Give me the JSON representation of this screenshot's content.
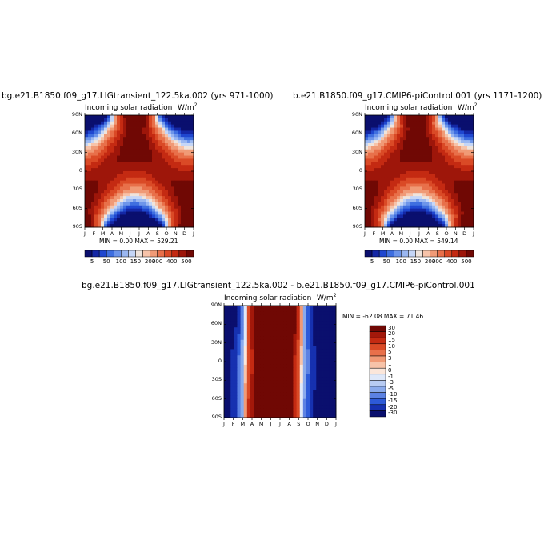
{
  "chart_data": [
    {
      "type": "heatmap",
      "title": "bg.e21.B1850.f09_g17.LIGtransient_122.5ka.002 (yrs 971-1000)",
      "variable_label": "Incoming solar radiation",
      "units_base": "W/m",
      "units_exp": "2",
      "minmax_text": "MIN =    0.00 MAX =  529.21",
      "x_ticks": [
        "J",
        "F",
        "M",
        "A",
        "M",
        "J",
        "J",
        "A",
        "S",
        "O",
        "N",
        "D",
        "J"
      ],
      "y_ticks": [
        "90N",
        "60N",
        "30N",
        "0",
        "30S",
        "60S",
        "90S"
      ],
      "colorbar_labels": [
        "5",
        "50",
        "100",
        "150",
        "200",
        "300",
        "400",
        "500"
      ],
      "colorbar_levels": [
        5,
        25,
        50,
        75,
        100,
        125,
        150,
        175,
        200,
        250,
        300,
        350,
        400,
        450,
        500
      ],
      "max_value": 529.21,
      "min_value": 0.0
    },
    {
      "type": "heatmap",
      "title": "b.e21.B1850.f09_g17.CMIP6-piControl.001 (yrs 1171-1200)",
      "variable_label": "Incoming solar radiation",
      "units_base": "W/m",
      "units_exp": "2",
      "minmax_text": "MIN =    0.00 MAX =  549.14",
      "x_ticks": [
        "J",
        "F",
        "M",
        "A",
        "M",
        "J",
        "J",
        "A",
        "S",
        "O",
        "N",
        "D",
        "J"
      ],
      "y_ticks": [
        "90N",
        "60N",
        "30N",
        "0",
        "30S",
        "60S",
        "90S"
      ],
      "colorbar_labels": [
        "5",
        "50",
        "100",
        "150",
        "200",
        "300",
        "400",
        "500"
      ],
      "colorbar_levels": [
        5,
        25,
        50,
        75,
        100,
        125,
        150,
        175,
        200,
        250,
        300,
        350,
        400,
        450,
        500
      ],
      "max_value": 549.14,
      "min_value": 0.0
    },
    {
      "type": "heatmap",
      "title": "bg.e21.B1850.f09_g17.LIGtransient_122.5ka.002 - b.e21.B1850.f09_g17.CMIP6-piControl.001",
      "variable_label": "Incoming solar radiation",
      "units_base": "W/m",
      "units_exp": "2",
      "minmax_text": "MIN = -62.08 MAX =  71.46",
      "x_ticks": [
        "J",
        "F",
        "M",
        "A",
        "M",
        "J",
        "J",
        "A",
        "S",
        "O",
        "N",
        "D",
        "J"
      ],
      "y_ticks": [
        "90N",
        "60N",
        "30N",
        "0",
        "30S",
        "60S",
        "90S"
      ],
      "colorbar_labels": [
        "30",
        "20",
        "15",
        "10",
        "5",
        "3",
        "1",
        "0",
        "-1",
        "-3",
        "-5",
        "-10",
        "-15",
        "-20",
        "-30"
      ],
      "max_value": 71.46,
      "min_value": -62.08
    }
  ],
  "colors": {
    "abs_palette": [
      "#0a0f6e",
      "#1427a5",
      "#1f47d0",
      "#3f6fe0",
      "#6d95ea",
      "#9ab7f1",
      "#c5d6f7",
      "#efe4dc",
      "#f7c3a9",
      "#f09a76",
      "#e8704a",
      "#da4a26",
      "#c42a12",
      "#9e160a",
      "#700804"
    ],
    "diff_palette": [
      "#700804",
      "#a3180a",
      "#c42a12",
      "#da4a26",
      "#e8704a",
      "#f09a76",
      "#f7c3a9",
      "#fbe6da",
      "#dfe8f9",
      "#b7cbf3",
      "#8aaaec",
      "#5c82e3",
      "#2d5ad8",
      "#1631b0",
      "#0a0f6e"
    ]
  }
}
